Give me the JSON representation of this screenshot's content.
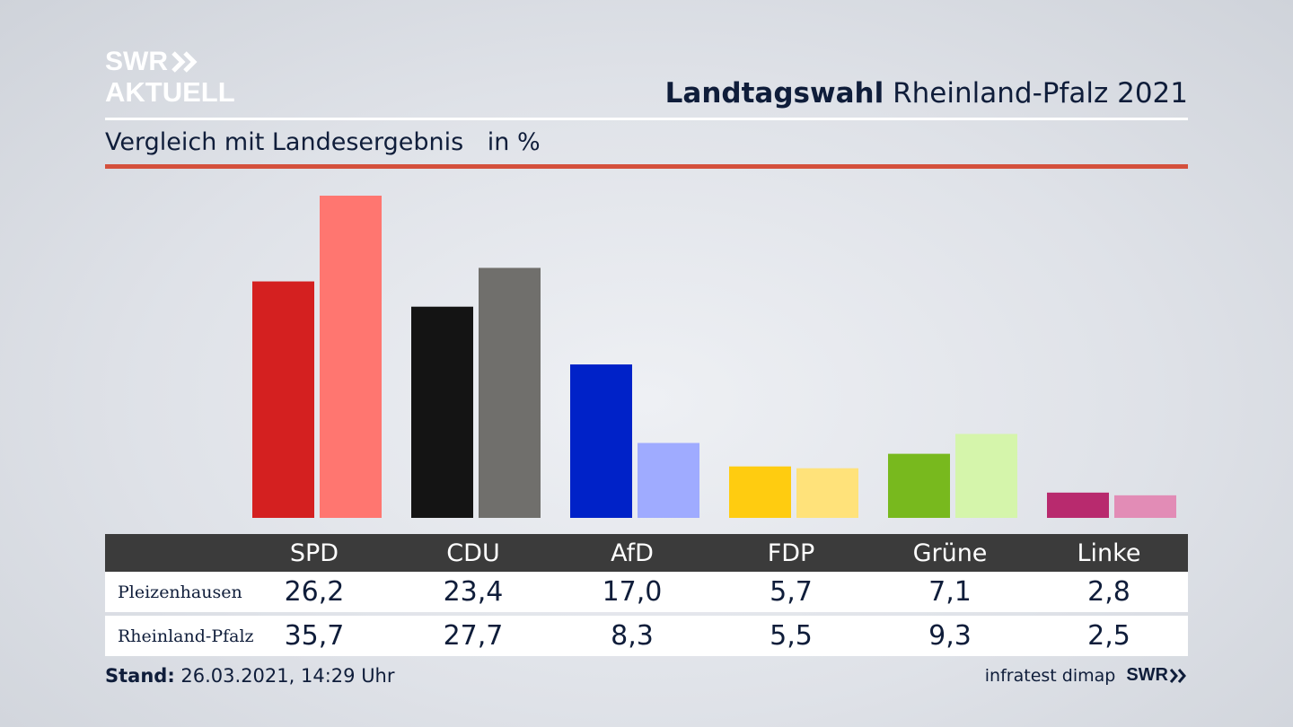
{
  "logo": {
    "line1": "SWR",
    "line2": "AKTUELL"
  },
  "header": {
    "title_bold": "Landtagswahl",
    "title_rest": "Rheinland-Pfalz 2021"
  },
  "subheader": {
    "text": "Vergleich mit Landesergebnis",
    "unit": "in %"
  },
  "colors": {
    "accent_rule": "#d4503c",
    "table_header_bg": "#3b3b3b",
    "text": "#0f1d3a"
  },
  "chart_data": {
    "type": "bar",
    "categories": [
      "SPD",
      "CDU",
      "AfD",
      "FDP",
      "Grüne",
      "Linke"
    ],
    "series": [
      {
        "name": "Pleizenhausen",
        "values": [
          26.2,
          23.4,
          17.0,
          5.7,
          7.1,
          2.8
        ],
        "colors": [
          "#d42020",
          "#141414",
          "#0022c8",
          "#ffcc10",
          "#78b91e",
          "#b82a6e"
        ]
      },
      {
        "name": "Rheinland-Pfalz",
        "values": [
          35.7,
          27.7,
          8.3,
          5.5,
          9.3,
          2.5
        ],
        "colors": [
          "#ff7670",
          "#706f6c",
          "#9fabff",
          "#ffe27a",
          "#d5f5ab",
          "#e28cb6"
        ]
      }
    ],
    "ylim": [
      0,
      36
    ]
  },
  "table": {
    "headers": [
      "SPD",
      "CDU",
      "AfD",
      "FDP",
      "Grüne",
      "Linke"
    ],
    "rows": [
      {
        "label": "Pleizenhausen",
        "values": [
          "26,2",
          "23,4",
          "17,0",
          "5,7",
          "7,1",
          "2,8"
        ]
      },
      {
        "label": "Rheinland-Pfalz",
        "values": [
          "35,7",
          "27,7",
          "8,3",
          "5,5",
          "9,3",
          "2,5"
        ]
      }
    ]
  },
  "footer": {
    "stand_label": "Stand:",
    "stand_value": "26.03.2021, 14:29 Uhr",
    "source": "infratest dimap",
    "brand": "SWR"
  }
}
